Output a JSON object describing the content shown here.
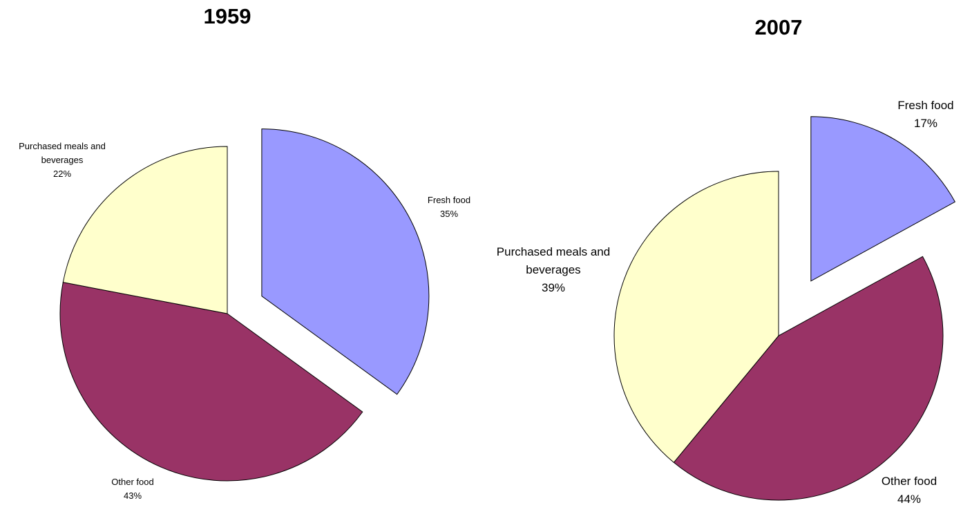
{
  "chart_data": [
    {
      "type": "pie",
      "title": "1959",
      "slices": [
        {
          "name": "Fresh food",
          "value": 35,
          "label": "35%",
          "color": "#9999ff"
        },
        {
          "name": "Other food",
          "value": 43,
          "label": "43%",
          "color": "#993366"
        },
        {
          "name": "Purchased meals and beverages",
          "value": 22,
          "label": "22%",
          "color": "#ffffcc"
        }
      ],
      "exploded": "Fresh food"
    },
    {
      "type": "pie",
      "title": "2007",
      "slices": [
        {
          "name": "Fresh food",
          "value": 17,
          "label": "17%",
          "color": "#9999ff"
        },
        {
          "name": "Other food",
          "value": 44,
          "label": "44%",
          "color": "#993366"
        },
        {
          "name": "Purchased meals and beverages",
          "value": 39,
          "label": "39%",
          "color": "#ffffcc"
        }
      ],
      "exploded": "Fresh food"
    }
  ]
}
